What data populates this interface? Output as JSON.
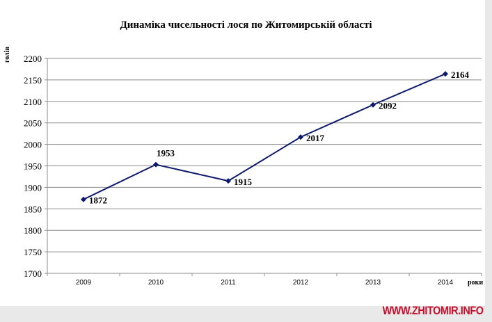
{
  "chart_data": {
    "type": "line",
    "title": "Динаміка чисельності лося по Житомирській області",
    "xlabel": "роки",
    "ylabel": "голів",
    "categories": [
      "2009",
      "2010",
      "2011",
      "2012",
      "2013",
      "2014"
    ],
    "series": [
      {
        "values": [
          1872,
          1953,
          1915,
          2017,
          2092,
          2164
        ]
      }
    ],
    "ylim": [
      1700,
      2200
    ],
    "yticks": [
      1700,
      1750,
      1800,
      1850,
      1900,
      1950,
      2000,
      2050,
      2100,
      2150,
      2200
    ],
    "grid": true,
    "legend": "none",
    "line_color": "#0d1a6b",
    "data_labels": true
  },
  "watermark": "WWW.ZHITOMIR.INFO"
}
